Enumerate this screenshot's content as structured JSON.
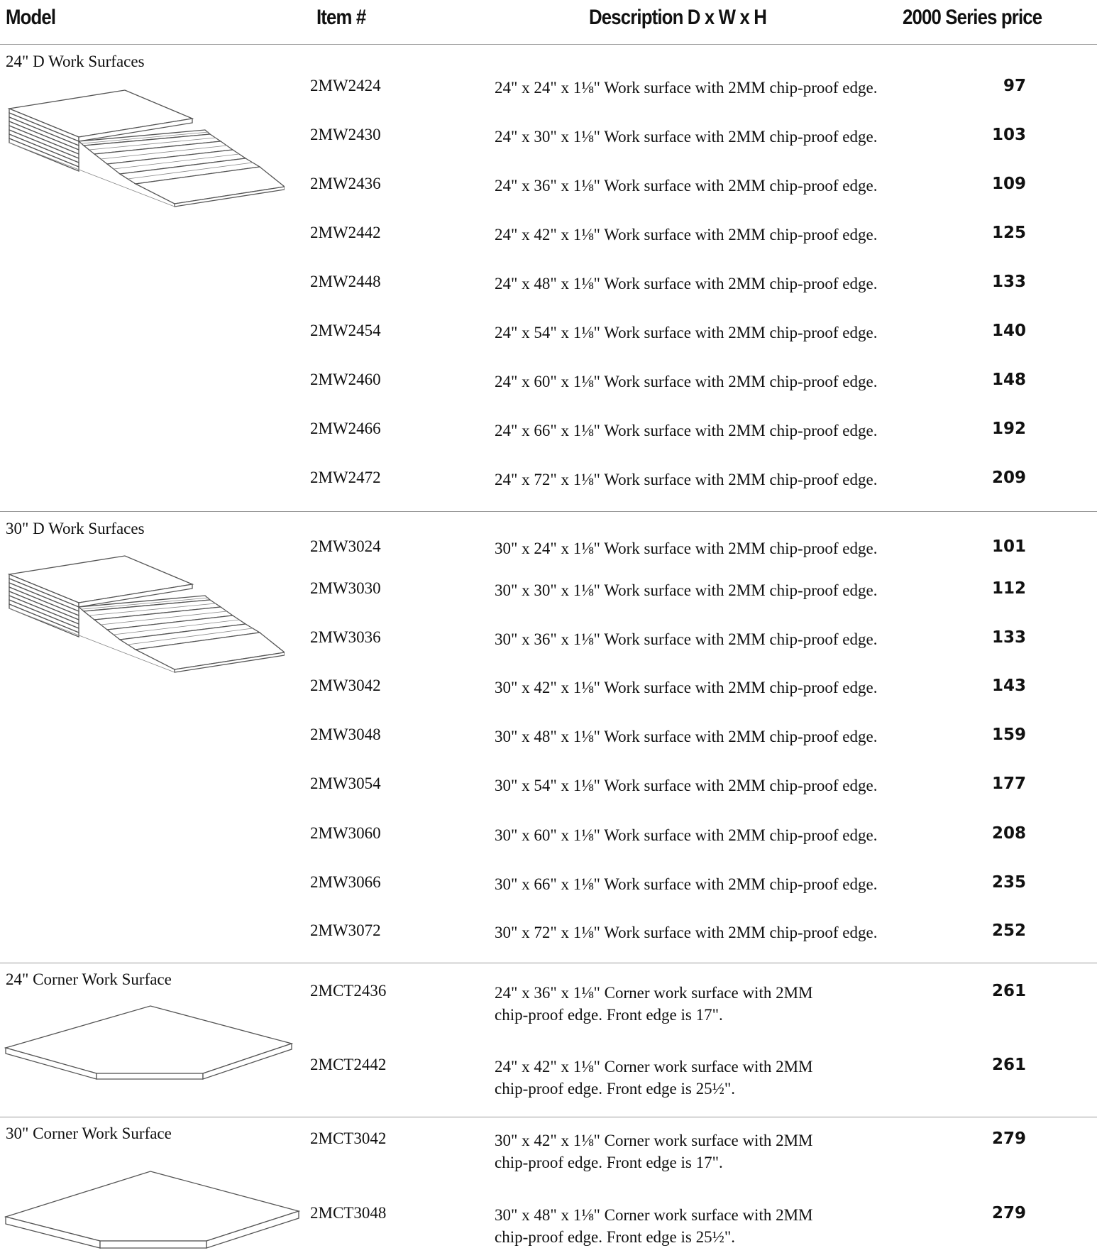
{
  "headers": {
    "model": "Model",
    "item": "Item #",
    "description": "Description D x W x H",
    "price": "2000 Series price"
  },
  "sections": [
    {
      "title": "24\" D Work Surfaces",
      "illustration": "stacked-work-surfaces-icon",
      "rows": [
        {
          "item": "2MW2424",
          "desc": "24\" x 24\" x 1⅛\" Work surface with 2MM chip-proof edge.",
          "price": "97"
        },
        {
          "item": "2MW2430",
          "desc": "24\" x 30\" x 1⅛\" Work surface with 2MM chip-proof edge.",
          "price": "103"
        },
        {
          "item": "2MW2436",
          "desc": "24\" x 36\" x 1⅛\" Work surface with 2MM chip-proof edge.",
          "price": "109"
        },
        {
          "item": "2MW2442",
          "desc": "24\" x 42\" x 1⅛\" Work surface with 2MM chip-proof edge.",
          "price": "125"
        },
        {
          "item": "2MW2448",
          "desc": "24\" x 48\" x 1⅛\" Work surface with 2MM chip-proof edge.",
          "price": "133"
        },
        {
          "item": "2MW2454",
          "desc": "24\" x 54\" x 1⅛\" Work surface with 2MM chip-proof edge.",
          "price": "140"
        },
        {
          "item": "2MW2460",
          "desc": "24\" x 60\" x 1⅛\" Work surface with 2MM chip-proof edge.",
          "price": "148"
        },
        {
          "item": "2MW2466",
          "desc": "24\" x 66\" x 1⅛\" Work surface with 2MM chip-proof edge.",
          "price": "192"
        },
        {
          "item": "2MW2472",
          "desc": "24\" x 72\" x 1⅛\" Work surface with 2MM chip-proof edge.",
          "price": "209"
        }
      ]
    },
    {
      "title": "30\" D Work Surfaces",
      "illustration": "stacked-work-surfaces-icon",
      "rows": [
        {
          "item": "2MW3024",
          "desc": "30\" x 24\" x 1⅛\" Work surface with 2MM chip-proof edge.",
          "price": "101"
        },
        {
          "item": "2MW3030",
          "desc": "30\" x 30\" x 1⅛\" Work surface with 2MM chip-proof edge.",
          "price": "112"
        },
        {
          "item": "2MW3036",
          "desc": "30\" x 36\" x 1⅛\" Work surface with 2MM chip-proof edge.",
          "price": "133"
        },
        {
          "item": "2MW3042",
          "desc": "30\" x 42\" x 1⅛\" Work surface with 2MM chip-proof edge.",
          "price": "143"
        },
        {
          "item": "2MW3048",
          "desc": "30\" x 48\" x 1⅛\" Work surface with 2MM chip-proof edge.",
          "price": "159"
        },
        {
          "item": "2MW3054",
          "desc": "30\" x 54\" x 1⅛\" Work surface with 2MM chip-proof edge.",
          "price": "177"
        },
        {
          "item": "2MW3060",
          "desc": "30\" x 60\" x 1⅛\" Work surface with 2MM chip-proof edge.",
          "price": "208"
        },
        {
          "item": "2MW3066",
          "desc": "30\" x 66\" x 1⅛\" Work surface with 2MM chip-proof edge.",
          "price": "235"
        },
        {
          "item": "2MW3072",
          "desc": "30\" x 72\" x 1⅛\" Work surface with 2MM chip-proof edge.",
          "price": "252"
        }
      ]
    },
    {
      "title": "24\" Corner Work Surface",
      "illustration": "corner-work-surface-icon",
      "rows": [
        {
          "item": "2MCT2436",
          "desc1": "24\" x 36\" x 1⅛\" Corner work surface with 2MM",
          "desc2": "chip-proof edge. Front edge is 17\".",
          "price": "261"
        },
        {
          "item": "2MCT2442",
          "desc1": "24\" x 42\" x 1⅛\" Corner work surface with 2MM",
          "desc2": "chip-proof edge. Front edge is 25½\".",
          "price": "261"
        }
      ]
    },
    {
      "title": "30\" Corner Work Surface",
      "illustration": "corner-work-surface-icon",
      "rows": [
        {
          "item": "2MCT3042",
          "desc1": "30\" x 42\" x 1⅛\" Corner work surface with 2MM",
          "desc2": "chip-proof edge. Front edge is 17\".",
          "price": "279"
        },
        {
          "item": "2MCT3048",
          "desc1": "30\" x 48\" x 1⅛\" Corner work surface with 2MM",
          "desc2": "chip-proof edge. Front edge is 25½\".",
          "price": "279"
        }
      ]
    }
  ]
}
